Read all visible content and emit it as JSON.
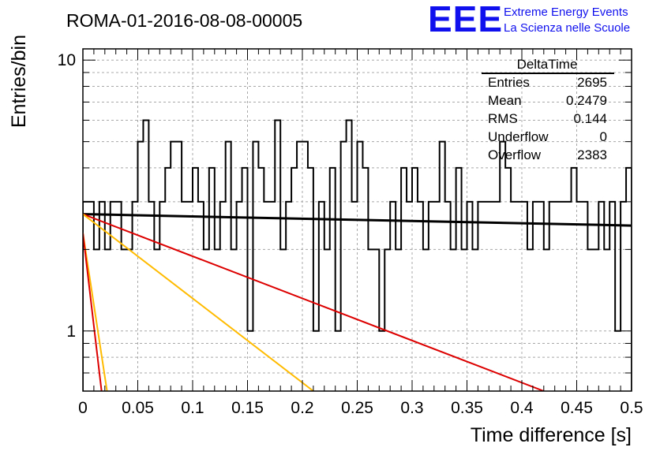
{
  "header": {
    "title": "ROMA-01-2016-08-08-00005",
    "logo_text": "EEE",
    "org_line1": "Extreme Energy Events",
    "org_line2": "La Scienza nelle Scuole"
  },
  "stats_box": {
    "title": "DeltaTime",
    "rows": [
      {
        "label": "Entries",
        "value": "2695"
      },
      {
        "label": "Mean",
        "value": "0.2479"
      },
      {
        "label": "RMS",
        "value": "0.144"
      },
      {
        "label": "Underflow",
        "value": "0"
      },
      {
        "label": "Overflow",
        "value": "2383"
      }
    ]
  },
  "colors": {
    "histogram": "#000000",
    "fit_black": "#000000",
    "fit_red": "#dd0000",
    "fit_orange": "#ffbb00",
    "logo": "#1010ee",
    "grid": "#a8a8a8"
  },
  "chart_data": {
    "type": "line",
    "title": "ROMA-01-2016-08-08-00005",
    "xlabel": "Time difference [s]",
    "ylabel": "Entries/bin",
    "xlim": [
      0,
      0.5
    ],
    "ylim": [
      0.6,
      11
    ],
    "yscale": "log",
    "grid": true,
    "legend_position": "top-right",
    "x_ticks": [
      "0",
      "0.05",
      "0.1",
      "0.15",
      "0.2",
      "0.25",
      "0.3",
      "0.35",
      "0.4",
      "0.45",
      "0.5"
    ],
    "y_ticks": [
      "1",
      "10"
    ],
    "histogram": {
      "name": "DeltaTime",
      "bin_width": 0.005,
      "counts": [
        3,
        3,
        2,
        3,
        2,
        3,
        3,
        2,
        2,
        3,
        5,
        6,
        3,
        2,
        3,
        4,
        5,
        5,
        3,
        3,
        4,
        3,
        2,
        4,
        2,
        3,
        5,
        2,
        3,
        4,
        1,
        5,
        4,
        3,
        3,
        6,
        2,
        3,
        4,
        5,
        5,
        4,
        1,
        3,
        2,
        4,
        1,
        5,
        6,
        3,
        5,
        4,
        2,
        2,
        1,
        2,
        3,
        2,
        4,
        3,
        4,
        3,
        2,
        3,
        3,
        5,
        3,
        2,
        4,
        2,
        3,
        2,
        3,
        3,
        3,
        3,
        5,
        4,
        3,
        3,
        3,
        2,
        3,
        3,
        2,
        3,
        3,
        3,
        3,
        4,
        3,
        3,
        2,
        2,
        3,
        2,
        3,
        1,
        3,
        4
      ]
    },
    "series": [
      {
        "type": "exp",
        "color": "#000000",
        "y0": 2.7,
        "y1": 2.45
      },
      {
        "type": "exp",
        "color": "#dd0000",
        "y0": 2.7,
        "y_end": 0.6,
        "x_end": 0.42
      },
      {
        "type": "exp",
        "color": "#ffbb00",
        "y0": 2.7,
        "y_end": 0.6,
        "x_end": 0.21
      },
      {
        "type": "exp",
        "color": "#ffbb00",
        "y0": 2.3,
        "y_end": 0.6,
        "x_end": 0.022
      },
      {
        "type": "exp",
        "color": "#dd0000",
        "y0": 2.3,
        "y_end": 0.6,
        "x_end": 0.017
      }
    ]
  }
}
